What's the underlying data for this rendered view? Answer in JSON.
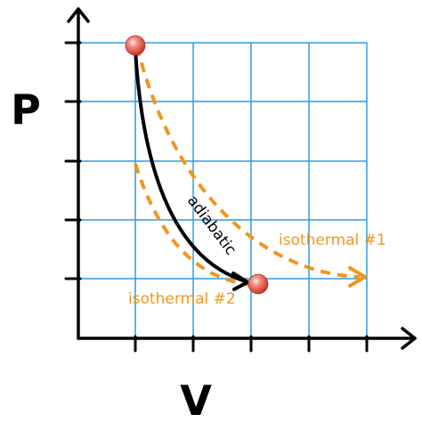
{
  "diagram": {
    "axes": {
      "y_label": "P",
      "x_label": "V"
    },
    "curves": {
      "adiabatic_label": "adiabatic",
      "isothermal_1_label": "isothermal #1",
      "isothermal_2_label": "isothermal #2"
    },
    "colors": {
      "grid": "#2e9be6",
      "axis": "#000000",
      "adiabatic": "#000000",
      "isothermal": "#f0961e",
      "state_point": "#e8544a"
    }
  }
}
